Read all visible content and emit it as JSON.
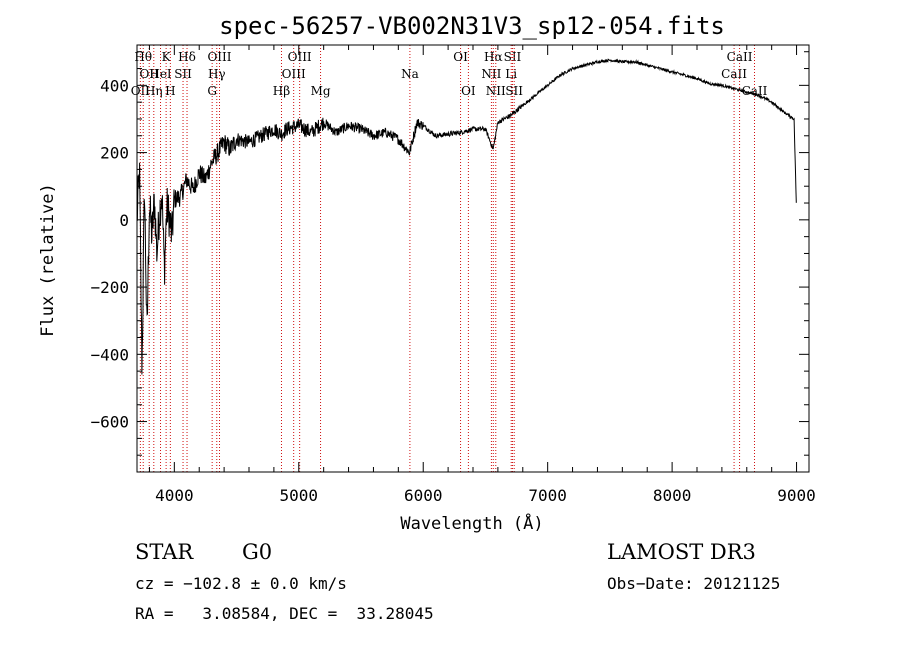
{
  "chart_data": {
    "type": "line",
    "title": "spec-56257-VB002N31V3_sp12-054.fits",
    "xlabel": "Wavelength (Å)",
    "ylabel": "Flux (relative)",
    "xlim": [
      3700,
      9100
    ],
    "ylim": [
      -750,
      520
    ],
    "xticks": [
      4000,
      5000,
      6000,
      7000,
      8000,
      9000
    ],
    "xtick_labels": [
      "4000",
      "5000",
      "6000",
      "7000",
      "8000",
      "9000"
    ],
    "yticks": [
      -600,
      -400,
      -200,
      0,
      200,
      400
    ],
    "ytick_labels": [
      "−600",
      "−400",
      "−200",
      "0",
      "200",
      "400"
    ],
    "series": [
      {
        "name": "flux",
        "x": [
          3700,
          3720,
          3740,
          3760,
          3780,
          3800,
          3820,
          3840,
          3860,
          3880,
          3900,
          3920,
          3940,
          3960,
          3980,
          4000,
          4050,
          4100,
          4150,
          4200,
          4250,
          4300,
          4350,
          4400,
          4450,
          4500,
          4600,
          4700,
          4800,
          4861,
          4900,
          5000,
          5100,
          5200,
          5300,
          5400,
          5500,
          5600,
          5700,
          5800,
          5890,
          5950,
          6000,
          6100,
          6200,
          6300,
          6400,
          6500,
          6562,
          6600,
          6700,
          6800,
          6900,
          7000,
          7100,
          7200,
          7300,
          7400,
          7500,
          7600,
          7700,
          7800,
          7900,
          8000,
          8100,
          8200,
          8300,
          8400,
          8500,
          8600,
          8700,
          8800,
          8900,
          8980,
          9000
        ],
        "y": [
          0,
          150,
          -450,
          100,
          -350,
          50,
          -50,
          60,
          -100,
          20,
          80,
          -150,
          40,
          10,
          -50,
          60,
          70,
          120,
          90,
          140,
          120,
          170,
          200,
          230,
          210,
          240,
          230,
          250,
          270,
          255,
          270,
          280,
          260,
          290,
          260,
          280,
          270,
          250,
          260,
          240,
          200,
          290,
          280,
          250,
          255,
          260,
          270,
          270,
          210,
          290,
          310,
          340,
          370,
          400,
          430,
          450,
          460,
          470,
          475,
          470,
          470,
          460,
          450,
          440,
          430,
          420,
          405,
          400,
          390,
          380,
          370,
          350,
          320,
          300,
          20
        ]
      }
    ],
    "line_marks": [
      {
        "x": 3727,
        "label": "OII",
        "row": 3
      },
      {
        "x": 3750,
        "label": "Hθ",
        "row": 1
      },
      {
        "x": 3798,
        "label": "OII",
        "row": 2
      },
      {
        "x": 3835,
        "label": "Hη",
        "row": 3
      },
      {
        "x": 3889,
        "label": "HeI",
        "row": 2
      },
      {
        "x": 3934,
        "label": "K",
        "row": 1
      },
      {
        "x": 3968,
        "label": "H",
        "row": 3
      },
      {
        "x": 4070,
        "label": "SII",
        "row": 2
      },
      {
        "x": 4102,
        "label": "Hδ",
        "row": 1
      },
      {
        "x": 4304,
        "label": "G",
        "row": 3
      },
      {
        "x": 4341,
        "label": "Hγ",
        "row": 2
      },
      {
        "x": 4363,
        "label": "OIII",
        "row": 1
      },
      {
        "x": 4861,
        "label": "Hβ",
        "row": 3
      },
      {
        "x": 4959,
        "label": "OIII",
        "row": 2
      },
      {
        "x": 5007,
        "label": "OIII",
        "row": 1
      },
      {
        "x": 5175,
        "label": "Mg",
        "row": 3
      },
      {
        "x": 5893,
        "label": "Na",
        "row": 2
      },
      {
        "x": 6300,
        "label": "OI",
        "row": 1
      },
      {
        "x": 6363,
        "label": "OI",
        "row": 3
      },
      {
        "x": 6548,
        "label": "NII",
        "row": 2
      },
      {
        "x": 6563,
        "label": "Hα",
        "row": 1
      },
      {
        "x": 6583,
        "label": "NII",
        "row": 3
      },
      {
        "x": 6707,
        "label": "Li",
        "row": 2
      },
      {
        "x": 6717,
        "label": "SII",
        "row": 1
      },
      {
        "x": 6731,
        "label": "SII",
        "row": 3
      },
      {
        "x": 8498,
        "label": "CaII",
        "row": 2
      },
      {
        "x": 8542,
        "label": "CaII",
        "row": 1
      },
      {
        "x": 8662,
        "label": "CaII",
        "row": 3
      }
    ],
    "line_color": "#d01010"
  },
  "info": {
    "class": "STAR",
    "subclass": "G0",
    "survey": "LAMOST DR3",
    "cz": "cz = −102.8 ± 0.0 km/s",
    "obs_date": "Obs−Date: 20121125",
    "radec": "RA =   3.08584, DEC =  33.28045"
  }
}
